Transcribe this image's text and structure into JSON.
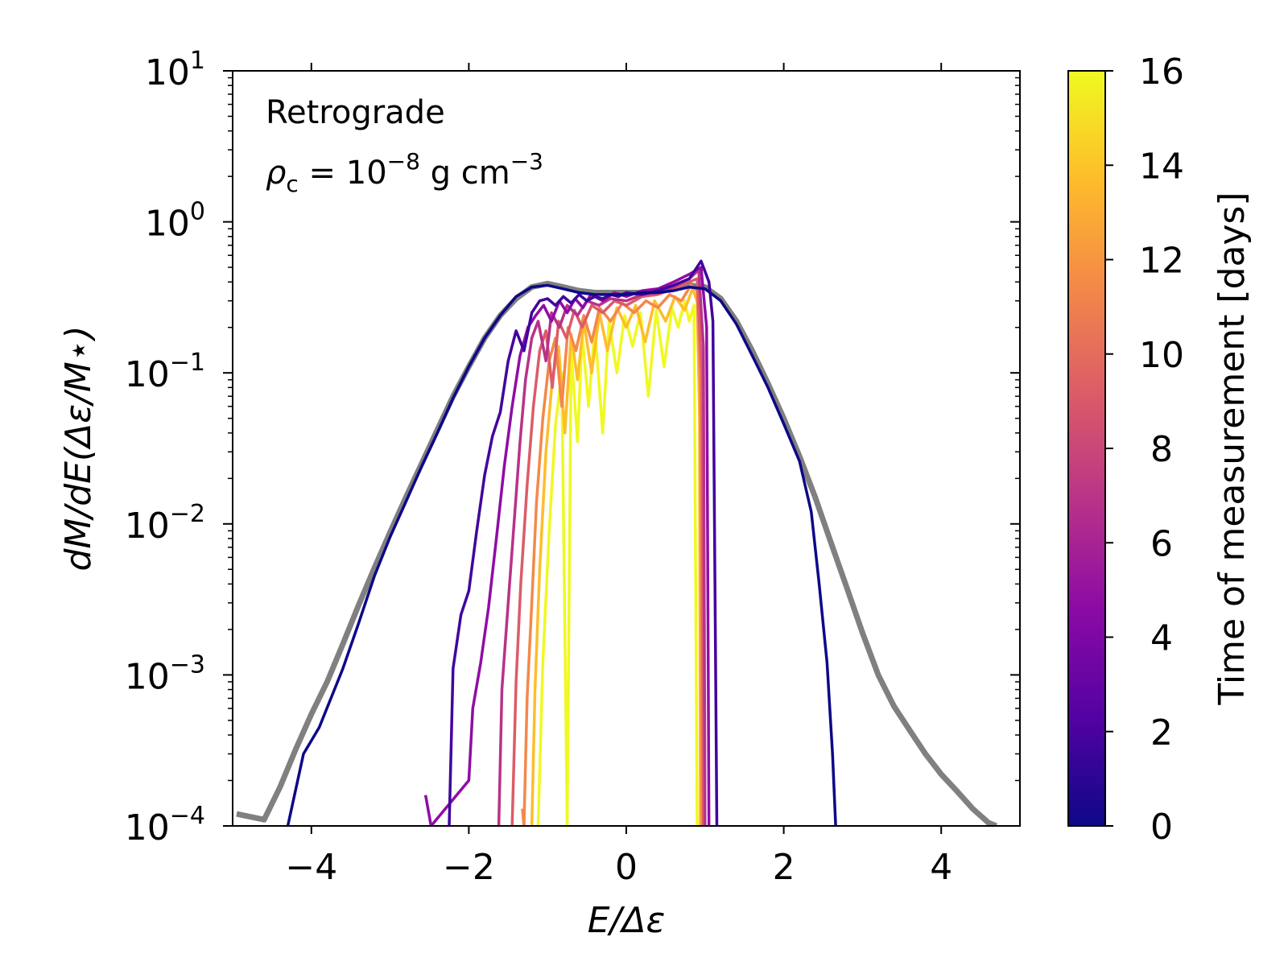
{
  "chart_data": {
    "type": "line",
    "xlabel": "E/Δε",
    "ylabel": "dM/dE(Δε/M⋆)",
    "xlim": [
      -5,
      5
    ],
    "ylim": [
      0.0001,
      10
    ],
    "yscale": "log",
    "x_ticks": [
      -4,
      -2,
      0,
      2,
      4
    ],
    "x_tick_labels": [
      "−4",
      "−2",
      "0",
      "2",
      "4"
    ],
    "y_ticks": [
      {
        "value": 10,
        "base": "10",
        "exp": "1"
      },
      {
        "value": 1,
        "base": "10",
        "exp": "0"
      },
      {
        "value": 0.1,
        "base": "10",
        "exp": "−1"
      },
      {
        "value": 0.01,
        "base": "10",
        "exp": "−2"
      },
      {
        "value": 0.001,
        "base": "10",
        "exp": "−3"
      },
      {
        "value": 0.0001,
        "base": "10",
        "exp": "−4"
      }
    ],
    "annotations": {
      "line1": "Retrograde",
      "line2_sym": "ρ",
      "line2_sub": "c",
      "line2_mid": " = 10",
      "line2_exp1": "−8",
      "line2_unit": " g cm",
      "line2_exp2": "−3"
    },
    "reference_curve": {
      "name": "gray reference",
      "color": "#808080",
      "points": [
        [
          -4.95,
          0.00012
        ],
        [
          -4.6,
          0.00011
        ],
        [
          -4.4,
          0.00018
        ],
        [
          -4.2,
          0.00032
        ],
        [
          -4.0,
          0.00055
        ],
        [
          -3.8,
          0.0009
        ],
        [
          -3.6,
          0.0016
        ],
        [
          -3.4,
          0.0029
        ],
        [
          -3.2,
          0.0051
        ],
        [
          -3.0,
          0.0088
        ],
        [
          -2.8,
          0.015
        ],
        [
          -2.6,
          0.025
        ],
        [
          -2.4,
          0.042
        ],
        [
          -2.2,
          0.07
        ],
        [
          -2.0,
          0.11
        ],
        [
          -1.8,
          0.17
        ],
        [
          -1.6,
          0.24
        ],
        [
          -1.4,
          0.31
        ],
        [
          -1.2,
          0.37
        ],
        [
          -1.0,
          0.39
        ],
        [
          -0.8,
          0.37
        ],
        [
          -0.6,
          0.35
        ],
        [
          -0.4,
          0.34
        ],
        [
          -0.2,
          0.34
        ],
        [
          0.0,
          0.34
        ],
        [
          0.2,
          0.34
        ],
        [
          0.4,
          0.35
        ],
        [
          0.6,
          0.36
        ],
        [
          0.8,
          0.38
        ],
        [
          1.0,
          0.37
        ],
        [
          1.2,
          0.31
        ],
        [
          1.4,
          0.22
        ],
        [
          1.6,
          0.14
        ],
        [
          1.8,
          0.085
        ],
        [
          2.0,
          0.05
        ],
        [
          2.2,
          0.028
        ],
        [
          2.4,
          0.015
        ],
        [
          2.6,
          0.0075
        ],
        [
          2.8,
          0.0038
        ],
        [
          3.0,
          0.0019
        ],
        [
          3.2,
          0.001
        ],
        [
          3.4,
          0.00062
        ],
        [
          3.6,
          0.00043
        ],
        [
          3.8,
          0.0003
        ],
        [
          4.0,
          0.00022
        ],
        [
          4.2,
          0.00017
        ],
        [
          4.4,
          0.00013
        ],
        [
          4.6,
          0.000105
        ],
        [
          4.7,
          0.0001
        ]
      ]
    },
    "series": [
      {
        "time_days": 0.5,
        "color": "#0d0887",
        "points": [
          [
            -4.3,
            0.0001
          ],
          [
            -4.1,
            0.0003
          ],
          [
            -3.9,
            0.00045
          ],
          [
            -3.6,
            0.0011
          ],
          [
            -3.4,
            0.0022
          ],
          [
            -3.2,
            0.0045
          ],
          [
            -3.0,
            0.0082
          ],
          [
            -2.8,
            0.014
          ],
          [
            -2.6,
            0.024
          ],
          [
            -2.4,
            0.04
          ],
          [
            -2.2,
            0.068
          ],
          [
            -2.0,
            0.11
          ],
          [
            -1.8,
            0.17
          ],
          [
            -1.6,
            0.24
          ],
          [
            -1.4,
            0.32
          ],
          [
            -1.2,
            0.37
          ],
          [
            -1.0,
            0.38
          ],
          [
            -0.8,
            0.36
          ],
          [
            -0.6,
            0.34
          ],
          [
            -0.4,
            0.33
          ],
          [
            -0.2,
            0.33
          ],
          [
            0.0,
            0.33
          ],
          [
            0.2,
            0.34
          ],
          [
            0.4,
            0.34
          ],
          [
            0.6,
            0.35
          ],
          [
            0.8,
            0.37
          ],
          [
            1.0,
            0.36
          ],
          [
            1.2,
            0.3
          ],
          [
            1.4,
            0.21
          ],
          [
            1.6,
            0.13
          ],
          [
            1.8,
            0.08
          ],
          [
            2.0,
            0.046
          ],
          [
            2.2,
            0.026
          ],
          [
            2.35,
            0.012
          ],
          [
            2.45,
            0.004
          ],
          [
            2.55,
            0.0012
          ],
          [
            2.62,
            0.0003
          ],
          [
            2.66,
            0.0001
          ]
        ]
      },
      {
        "time_days": 2.0,
        "color": "#41049d",
        "points": [
          [
            -2.25,
            0.0001
          ],
          [
            -2.2,
            0.0011
          ],
          [
            -2.1,
            0.0025
          ],
          [
            -2.0,
            0.0036
          ],
          [
            -1.9,
            0.009
          ],
          [
            -1.8,
            0.021
          ],
          [
            -1.7,
            0.038
          ],
          [
            -1.6,
            0.055
          ],
          [
            -1.5,
            0.12
          ],
          [
            -1.4,
            0.19
          ],
          [
            -1.3,
            0.14
          ],
          [
            -1.2,
            0.25
          ],
          [
            -1.1,
            0.3
          ],
          [
            -1.0,
            0.31
          ],
          [
            -0.9,
            0.28
          ],
          [
            -0.8,
            0.32
          ],
          [
            -0.7,
            0.29
          ],
          [
            -0.6,
            0.33
          ],
          [
            -0.5,
            0.3
          ],
          [
            -0.4,
            0.32
          ],
          [
            -0.3,
            0.31
          ],
          [
            -0.2,
            0.33
          ],
          [
            -0.1,
            0.32
          ],
          [
            0.0,
            0.34
          ],
          [
            0.2,
            0.33
          ],
          [
            0.4,
            0.35
          ],
          [
            0.6,
            0.38
          ],
          [
            0.8,
            0.42
          ],
          [
            0.95,
            0.55
          ],
          [
            1.05,
            0.4
          ],
          [
            1.1,
            0.22
          ],
          [
            1.15,
            0.0001
          ]
        ]
      },
      {
        "time_days": 4.0,
        "color": "#8f0da4",
        "points": [
          [
            -2.55,
            0.00016
          ],
          [
            -2.48,
            0.0001
          ],
          [
            -2.0,
            0.0002
          ],
          [
            -1.95,
            0.0006
          ],
          [
            -1.85,
            0.0012
          ],
          [
            -1.75,
            0.0028
          ],
          [
            -1.65,
            0.008
          ],
          [
            -1.55,
            0.024
          ],
          [
            -1.45,
            0.06
          ],
          [
            -1.35,
            0.13
          ],
          [
            -1.25,
            0.2
          ],
          [
            -1.15,
            0.24
          ],
          [
            -1.05,
            0.28
          ],
          [
            -0.95,
            0.22
          ],
          [
            -0.85,
            0.3
          ],
          [
            -0.75,
            0.25
          ],
          [
            -0.65,
            0.31
          ],
          [
            -0.55,
            0.27
          ],
          [
            -0.45,
            0.33
          ],
          [
            -0.3,
            0.3
          ],
          [
            -0.15,
            0.34
          ],
          [
            0.0,
            0.32
          ],
          [
            0.2,
            0.35
          ],
          [
            0.4,
            0.36
          ],
          [
            0.6,
            0.4
          ],
          [
            0.8,
            0.45
          ],
          [
            0.95,
            0.5
          ],
          [
            1.02,
            0.2
          ],
          [
            1.05,
            0.0001
          ]
        ]
      },
      {
        "time_days": 6.0,
        "color": "#b83289",
        "points": [
          [
            -1.62,
            0.0001
          ],
          [
            -1.58,
            0.0008
          ],
          [
            -1.5,
            0.003
          ],
          [
            -1.42,
            0.011
          ],
          [
            -1.35,
            0.035
          ],
          [
            -1.28,
            0.09
          ],
          [
            -1.2,
            0.17
          ],
          [
            -1.12,
            0.22
          ],
          [
            -1.02,
            0.12
          ],
          [
            -0.95,
            0.25
          ],
          [
            -0.85,
            0.2
          ],
          [
            -0.75,
            0.28
          ],
          [
            -0.62,
            0.24
          ],
          [
            -0.5,
            0.3
          ],
          [
            -0.35,
            0.28
          ],
          [
            -0.2,
            0.31
          ],
          [
            0.0,
            0.3
          ],
          [
            0.2,
            0.33
          ],
          [
            0.4,
            0.34
          ],
          [
            0.6,
            0.37
          ],
          [
            0.8,
            0.42
          ],
          [
            0.92,
            0.48
          ],
          [
            0.98,
            0.15
          ],
          [
            1.0,
            0.0001
          ]
        ]
      },
      {
        "time_days": 8.0,
        "color": "#db5c68",
        "points": [
          [
            -1.45,
            0.0001
          ],
          [
            -1.4,
            0.0009
          ],
          [
            -1.34,
            0.004
          ],
          [
            -1.26,
            0.018
          ],
          [
            -1.18,
            0.06
          ],
          [
            -1.1,
            0.14
          ],
          [
            -1.02,
            0.19
          ],
          [
            -0.94,
            0.08
          ],
          [
            -0.86,
            0.22
          ],
          [
            -0.76,
            0.17
          ],
          [
            -0.66,
            0.26
          ],
          [
            -0.56,
            0.2
          ],
          [
            -0.44,
            0.28
          ],
          [
            -0.3,
            0.25
          ],
          [
            -0.15,
            0.3
          ],
          [
            0.0,
            0.28
          ],
          [
            0.2,
            0.32
          ],
          [
            0.4,
            0.33
          ],
          [
            0.6,
            0.36
          ],
          [
            0.8,
            0.4
          ],
          [
            0.9,
            0.42
          ],
          [
            0.96,
            0.1
          ],
          [
            0.98,
            0.0001
          ]
        ]
      },
      {
        "time_days": 10.0,
        "color": "#f48849",
        "points": [
          [
            -1.32,
            0.00013
          ],
          [
            -1.3,
            0.0001
          ],
          [
            -1.26,
            0.0007
          ],
          [
            -1.2,
            0.003
          ],
          [
            -1.14,
            0.014
          ],
          [
            -1.06,
            0.05
          ],
          [
            -0.98,
            0.12
          ],
          [
            -0.9,
            0.17
          ],
          [
            -0.82,
            0.06
          ],
          [
            -0.74,
            0.2
          ],
          [
            -0.64,
            0.14
          ],
          [
            -0.54,
            0.24
          ],
          [
            -0.44,
            0.16
          ],
          [
            -0.34,
            0.27
          ],
          [
            -0.2,
            0.22
          ],
          [
            -0.05,
            0.29
          ],
          [
            0.1,
            0.25
          ],
          [
            0.25,
            0.3
          ],
          [
            0.4,
            0.27
          ],
          [
            0.55,
            0.33
          ],
          [
            0.7,
            0.3
          ],
          [
            0.82,
            0.38
          ],
          [
            0.9,
            0.35
          ],
          [
            0.94,
            0.08
          ],
          [
            0.96,
            0.0001
          ]
        ]
      },
      {
        "time_days": 13.0,
        "color": "#febd2a",
        "points": [
          [
            -1.2,
            0.0001
          ],
          [
            -1.16,
            0.0008
          ],
          [
            -1.1,
            0.005
          ],
          [
            -1.02,
            0.03
          ],
          [
            -0.94,
            0.09
          ],
          [
            -0.86,
            0.15
          ],
          [
            -0.78,
            0.04
          ],
          [
            -0.7,
            0.18
          ],
          [
            -0.62,
            0.09
          ],
          [
            -0.54,
            0.22
          ],
          [
            -0.44,
            0.1
          ],
          [
            -0.34,
            0.25
          ],
          [
            -0.24,
            0.14
          ],
          [
            -0.12,
            0.27
          ],
          [
            0.0,
            0.2
          ],
          [
            0.12,
            0.28
          ],
          [
            0.24,
            0.16
          ],
          [
            0.36,
            0.3
          ],
          [
            0.5,
            0.22
          ],
          [
            0.62,
            0.32
          ],
          [
            0.74,
            0.26
          ],
          [
            0.84,
            0.36
          ],
          [
            0.9,
            0.3
          ],
          [
            0.93,
            0.05
          ],
          [
            0.94,
            0.0001
          ]
        ]
      },
      {
        "time_days": 15.5,
        "color": "#f0f921",
        "points": [
          [
            -1.12,
            0.0001
          ],
          [
            -1.06,
            0.0012
          ],
          [
            -0.98,
            0.009
          ],
          [
            -0.9,
            0.045
          ],
          [
            -0.82,
            0.1
          ],
          [
            -0.75,
            0.0001
          ],
          [
            -0.7,
            0.14
          ],
          [
            -0.62,
            0.035
          ],
          [
            -0.56,
            0.18
          ],
          [
            -0.48,
            0.06
          ],
          [
            -0.4,
            0.2
          ],
          [
            -0.3,
            0.04
          ],
          [
            -0.22,
            0.22
          ],
          [
            -0.12,
            0.1
          ],
          [
            -0.02,
            0.24
          ],
          [
            0.08,
            0.15
          ],
          [
            0.18,
            0.25
          ],
          [
            0.28,
            0.07
          ],
          [
            0.38,
            0.26
          ],
          [
            0.48,
            0.11
          ],
          [
            0.58,
            0.27
          ],
          [
            0.66,
            0.2
          ],
          [
            0.74,
            0.3
          ],
          [
            0.8,
            0.22
          ],
          [
            0.86,
            0.28
          ],
          [
            0.9,
            0.0001
          ]
        ]
      }
    ],
    "colorbar": {
      "label": "Time of measurement [days]",
      "min": 0,
      "max": 16,
      "ticks": [
        0,
        2,
        4,
        6,
        8,
        10,
        12,
        14,
        16
      ],
      "colormap": [
        "#0d0887",
        "#5302a3",
        "#8b0aa5",
        "#b83289",
        "#db5c68",
        "#f48849",
        "#febd2a",
        "#f0f921"
      ]
    }
  }
}
